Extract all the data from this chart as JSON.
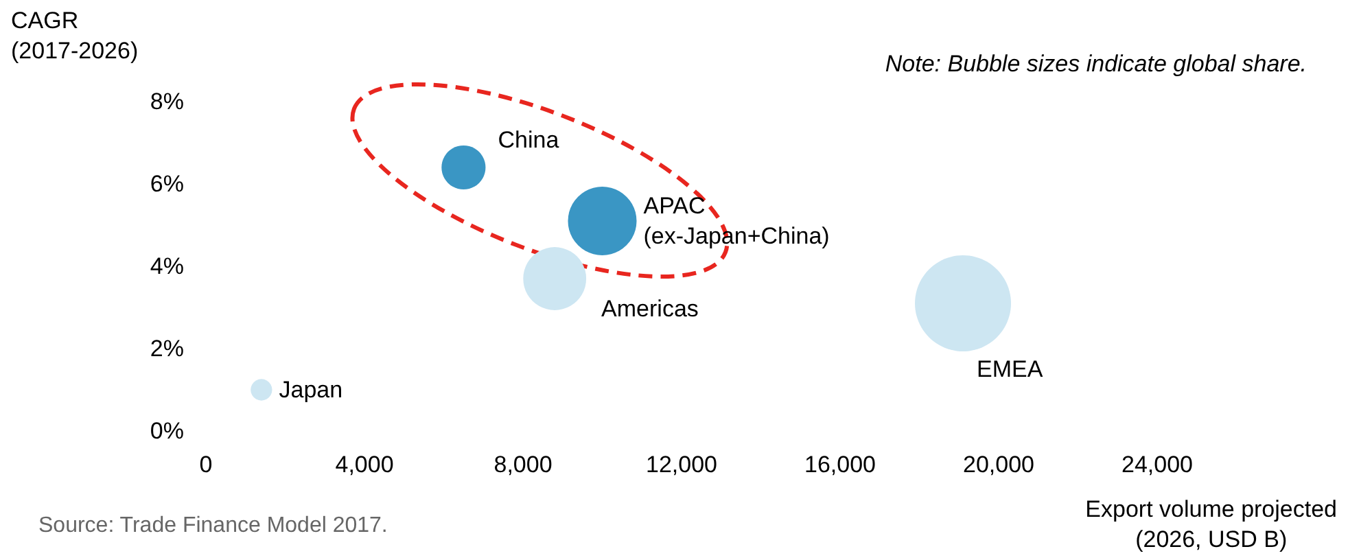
{
  "chart_data": {
    "type": "bubble",
    "xlabel": "Export volume projected\n(2026, USD B)",
    "ylabel": "CAGR\n(2017-2026)",
    "annotations": [
      "Note: Bubble sizes indicate global share.",
      "Source: Trade Finance Model 2017."
    ],
    "xlim": [
      0,
      24000
    ],
    "xticks": [
      0,
      {
        "value": 4000,
        "label": "4,000"
      },
      {
        "value": 8000,
        "label": "8,000"
      },
      {
        "value": 12000,
        "label": "12,000"
      },
      {
        "value": 16000,
        "label": "16,000"
      },
      {
        "value": 20000,
        "label": "20,000"
      },
      {
        "value": 24000,
        "label": "24,000"
      }
    ],
    "ylim": [
      0,
      8
    ],
    "yticks": [
      {
        "value": 0,
        "label": "0%"
      },
      {
        "value": 2,
        "label": "2%"
      },
      {
        "value": 4,
        "label": "4%"
      },
      {
        "value": 6,
        "label": "6%"
      },
      {
        "value": 8,
        "label": "8%"
      }
    ],
    "grid": false,
    "legend": false,
    "series": [
      {
        "name": "China",
        "color": "#3a96c4",
        "x": [
          6500
        ],
        "values": [
          6.4
        ],
        "sizes": [
          0.21
        ]
      },
      {
        "name": "APAC\n(ex-Japan+China)",
        "color": "#3a96c4",
        "x": [
          10000
        ],
        "values": [
          5.1
        ],
        "sizes": [
          0.51
        ]
      },
      {
        "name": "Americas",
        "color": "#cde6f2",
        "x": [
          8800
        ],
        "values": [
          3.7
        ],
        "sizes": [
          0.43
        ]
      },
      {
        "name": "Japan",
        "color": "#cde6f2",
        "x": [
          1400
        ],
        "values": [
          1.0
        ],
        "sizes": [
          0.05
        ]
      },
      {
        "name": "EMEA",
        "color": "#cde6f2",
        "x": [
          19100
        ],
        "values": [
          3.1
        ],
        "sizes": [
          1
        ]
      }
    ]
  }
}
